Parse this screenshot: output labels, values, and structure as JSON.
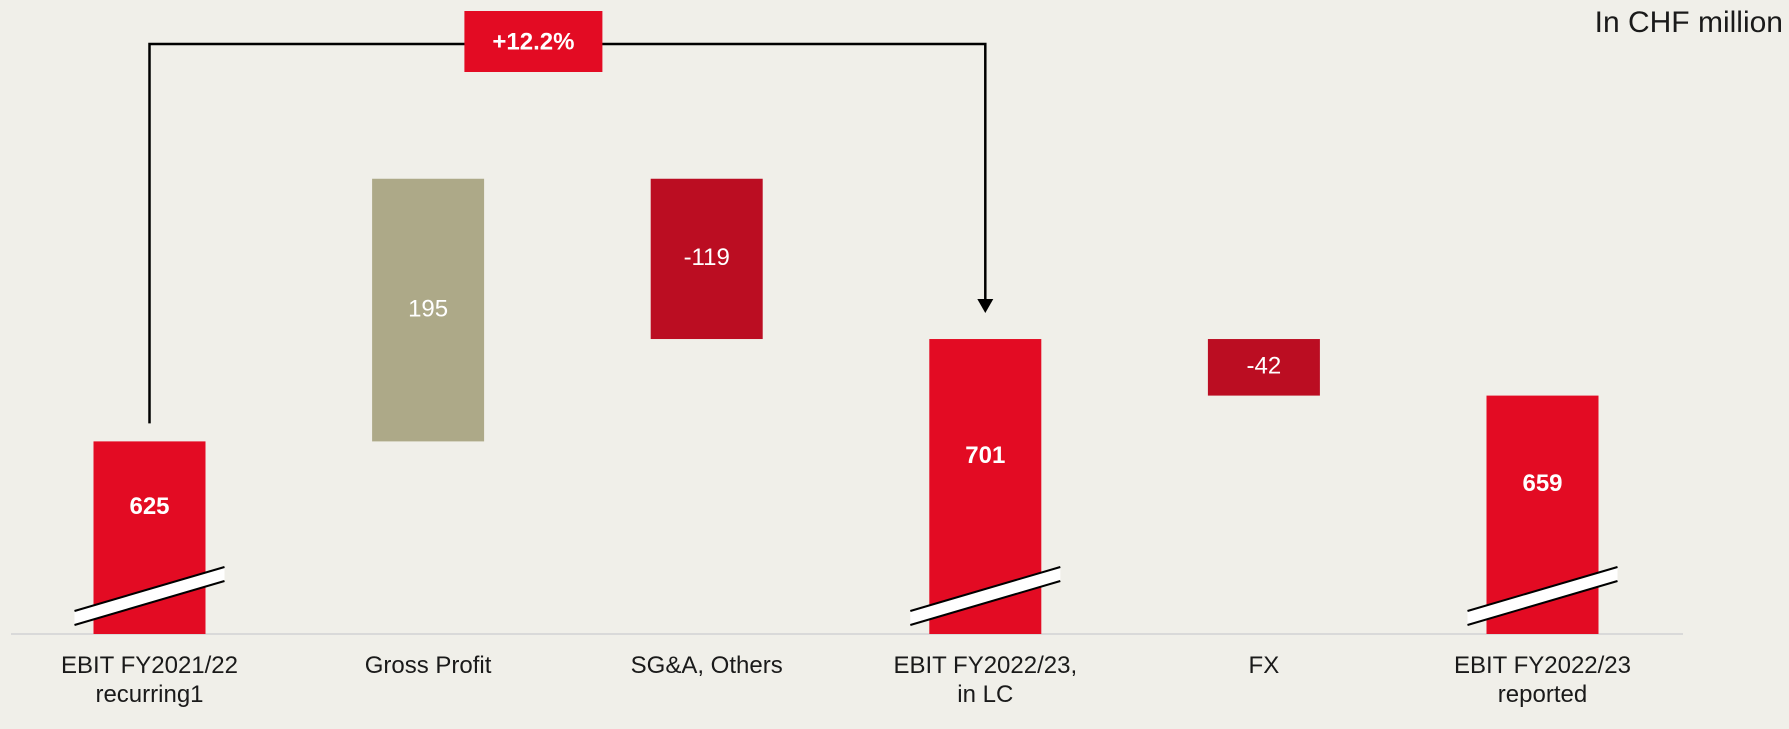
{
  "chart_data": {
    "type": "waterfall",
    "subtitle": "In CHF million",
    "categories": [
      "EBIT FY2021/22\nrecurring1",
      "Gross Profit",
      "SG&A, Others",
      "EBIT FY2022/23,\nin LC",
      "FX",
      "EBIT FY2022/23\nreported"
    ],
    "values": [
      625,
      195,
      -119,
      701,
      -42,
      659
    ],
    "measures": [
      "total",
      "relative",
      "relative",
      "total",
      "relative",
      "total"
    ],
    "colors": [
      "#e30b23",
      "#ada988",
      "#bb0d22",
      "#e30b23",
      "#bb0d22",
      "#e30b23"
    ],
    "ylim": [
      482,
      900
    ],
    "annotation": "+12.2%"
  }
}
